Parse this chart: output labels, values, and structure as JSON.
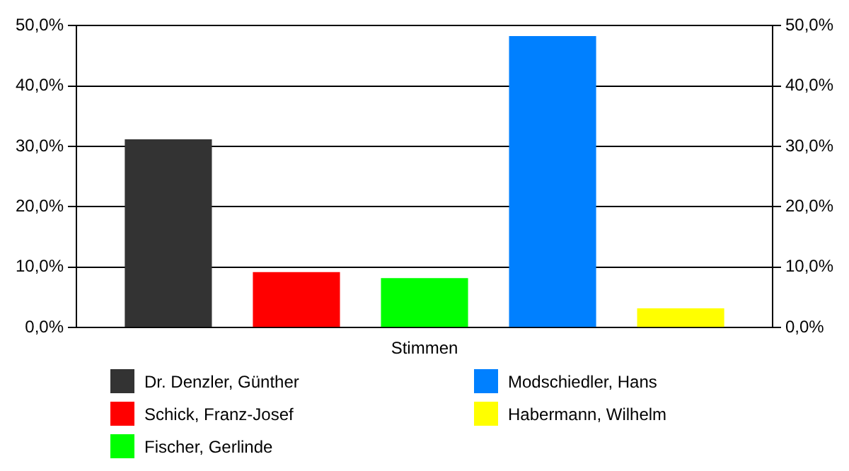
{
  "chart_data": {
    "type": "bar",
    "xlabel": "Stimmen",
    "categories": [
      null
    ],
    "series": [
      {
        "name": "Dr. Denzler, Günther",
        "color": "#333333",
        "values": [
          31.2
        ]
      },
      {
        "name": "Schick, Franz-Josef",
        "color": "#ff0000",
        "values": [
          9.2
        ]
      },
      {
        "name": "Fischer, Gerlinde",
        "color": "#00ff00",
        "values": [
          8.2
        ]
      },
      {
        "name": "Modschiedler, Hans",
        "color": "#0080ff",
        "values": [
          48.3
        ]
      },
      {
        "name": "Habermann, Wilhelm",
        "color": "#ffff00",
        "values": [
          3.2
        ]
      }
    ],
    "ylim": [
      0,
      50
    ],
    "yticks": [
      {
        "value": 0,
        "label": "0,0%"
      },
      {
        "value": 10,
        "label": "10,0%"
      },
      {
        "value": 20,
        "label": "20,0%"
      },
      {
        "value": 30,
        "label": "30,0%"
      },
      {
        "value": 40,
        "label": "40,0%"
      },
      {
        "value": 50,
        "label": "50,0%"
      }
    ],
    "y2lim": [
      0,
      50
    ],
    "y2ticks": [
      {
        "value": 0,
        "label": "0,0%"
      },
      {
        "value": 10,
        "label": "10,0%"
      },
      {
        "value": 20,
        "label": "20,0%"
      },
      {
        "value": 30,
        "label": "30,0%"
      },
      {
        "value": 40,
        "label": "40,0%"
      },
      {
        "value": 50,
        "label": "50,0%"
      }
    ],
    "grid": "y",
    "legend": "bottom"
  }
}
